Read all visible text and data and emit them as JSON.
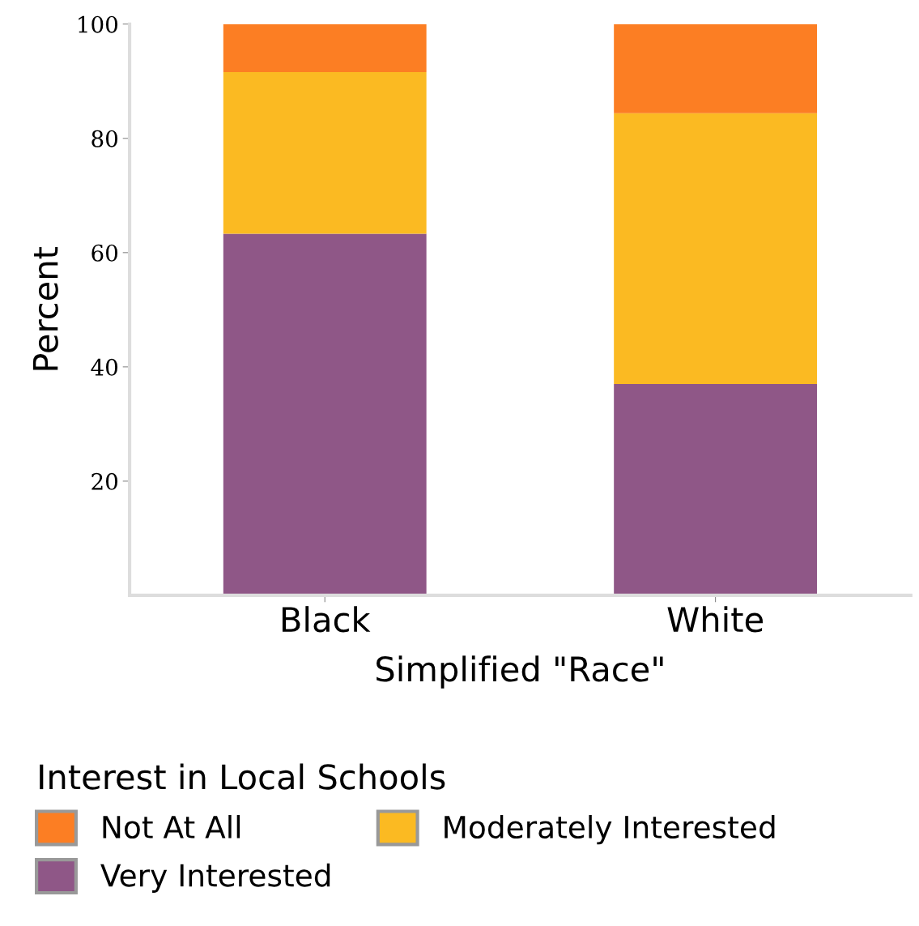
{
  "chart_data": {
    "type": "bar",
    "stacked": true,
    "xlabel": "Simplified \"Race\"",
    "ylabel": "Percent",
    "legend_title": "Interest in Local Schools",
    "categories": [
      "Black",
      "White"
    ],
    "series": [
      {
        "name": "Very Interested",
        "color": "#8f5787",
        "values": [
          63.3,
          37.0
        ]
      },
      {
        "name": "Moderately Interested",
        "color": "#fbba22",
        "values": [
          28.3,
          47.4
        ]
      },
      {
        "name": "Not At All",
        "color": "#fc7e23",
        "values": [
          8.4,
          15.6
        ]
      }
    ],
    "ylim": [
      0,
      100
    ],
    "yticks": [
      20,
      40,
      60,
      80,
      100
    ],
    "grid": false,
    "legend": "bottom"
  }
}
